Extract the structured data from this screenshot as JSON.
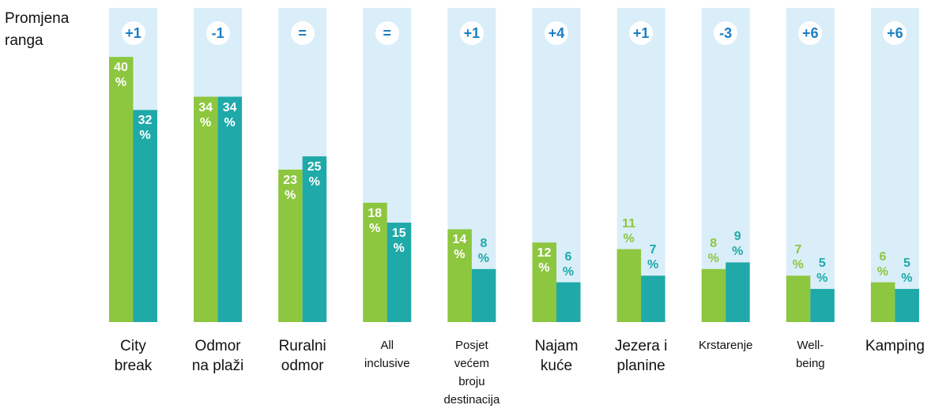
{
  "chart_data": {
    "type": "bar",
    "annotation": "Promjena\nranga",
    "categories": [
      "City\nbreak",
      "Odmor\nna plaži",
      "Ruralni\nodmor",
      "All\ninclusive",
      "Posjet\nvećem\nbroju\ndestinacija",
      "Najam\nkuće",
      "Jezera i\nplanine",
      "Krstarenje",
      "Well-\nbeing",
      "Kamping"
    ],
    "rank_changes": [
      "+1",
      "-1",
      "=",
      "=",
      "+1",
      "+4",
      "+1",
      "-3",
      "+6",
      "+6"
    ],
    "series": [
      {
        "color": "#8dc63f",
        "values": [
          40,
          34,
          23,
          18,
          14,
          12,
          11,
          8,
          7,
          6
        ],
        "value_labels": [
          "40\n%",
          "34\n%",
          "23\n%",
          "18\n%",
          "14\n%",
          "12\n%",
          "11\n%",
          "8\n%",
          "7\n%",
          "6\n%"
        ]
      },
      {
        "color": "#1fa9a9",
        "values": [
          32,
          34,
          25,
          15,
          8,
          6,
          7,
          9,
          5,
          5
        ],
        "value_labels": [
          "32\n%",
          "34\n%",
          "25\n%",
          "15\n%",
          "8\n%",
          "6\n%",
          "7\n%",
          "9\n%",
          "5\n%",
          "5\n%"
        ]
      }
    ],
    "ylim": [
      0,
      47.4
    ]
  }
}
